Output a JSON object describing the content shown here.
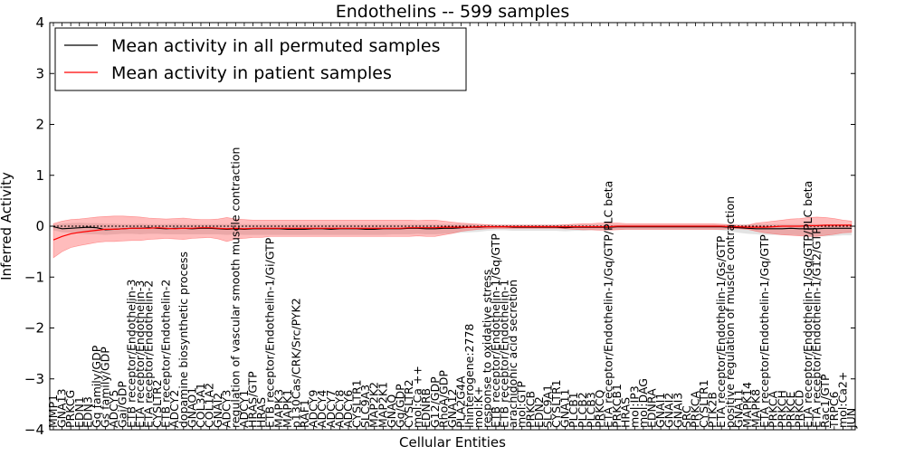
{
  "chart_data": {
    "type": "line",
    "title": "Endothelins -- 599 samples",
    "xlabel": "Cellular Entities",
    "ylabel": "Inferred Activity",
    "ylim": [
      -4,
      4
    ],
    "yticks": [
      -4,
      -3,
      -2,
      -1,
      0,
      1,
      2,
      3,
      4
    ],
    "ytick_labels": [
      "−4",
      "−3",
      "−2",
      "−1",
      "0",
      "1",
      "2",
      "3",
      "4"
    ],
    "grid": false,
    "legend_position": "top-left",
    "categories": [
      "MMP1",
      "GNA13",
      "PRKCG",
      "EDN1",
      "EDN3",
      "Gq family/GDP",
      "Gs family/GDP",
      "ADCY5",
      "Gai/GDP",
      "ETB receptor/Endothelin-3",
      "ETA receptor/Endothelin-3",
      "ETA receptor/Endothelin-2",
      "CYSLTR2",
      "ETB receptor/Endothelin-2",
      "ADCY2",
      "dopamine biosynthetic process",
      "GNAO1",
      "COL3A1",
      "COL1A2",
      "GNAI2",
      "ADCY3",
      "regulation of vascular smooth muscle contraction",
      "ADCY1",
      "HRAS/GTP",
      "HRAS",
      "ETB receptor/Endothelin-1/Gi/GTP",
      "MAPK3",
      "MAPK1",
      "p130Cas/CRK/Src/PYK2",
      "RAF1",
      "ADCY9",
      "ADCY4",
      "ADCY7",
      "ADCY8",
      "ADCY6",
      "CYSLTR1",
      "SLC9A3",
      "MAP2K2",
      "MAP2K1",
      "GNAQ",
      "Gq/GDP",
      "CYSLTR2",
      "mol:Ca ++",
      "EDNRB",
      "G12/GDP",
      "RhoA/GDP",
      "GNA12",
      "PLA2G4A",
      "Ihinterogene:2778",
      "mol:K+",
      "response to oxidative stress",
      "ETB receptor/Endothelin-1/Gq/GTP",
      "ETB receptor/Endothelin-1",
      "arachidonic acid secretion",
      "mol:GTP",
      "PRKCB",
      "EDN2",
      "SLC9A1",
      "CYSLTR1",
      "GNA11",
      "PLCB1",
      "PLCB2",
      "PLCB3",
      "PRKCQ",
      "ETA receptor/Endothelin-1/Gq/GTP/PLC beta",
      "PRKCB1",
      "HRAS",
      "mol:IP3",
      "mol:DAG",
      "EDNRA",
      "GNAI1",
      "GNAI2",
      "GNAI3",
      "SRC",
      "PRKCA",
      "CYSLTR1",
      "PTK2B",
      "ETA receptor/Endothelin-1/Gs/GTP",
      "positive regulation of muscle contraction",
      "GNA11",
      "MAPK14",
      "MAPK8",
      "ETA receptor/Endothelin-1/Gq/GTP",
      "PRKCA",
      "PRKCH",
      "PRKCE",
      "PRKCD",
      "ETA receptor/Endothelin-1/Gq/GTP/PLC beta",
      "ETA receptor/Endothelin-1/G12/GTP",
      "Rac1/GTP",
      "TRPC6",
      "mol:Ca2+",
      "JUN"
    ],
    "series": [
      {
        "name": "Mean activity in all permuted samples",
        "color": "#000000",
        "values": [
          -0.01,
          -0.05,
          -0.04,
          -0.03,
          -0.02,
          -0.03,
          -0.07,
          -0.06,
          -0.05,
          -0.04,
          -0.04,
          -0.03,
          -0.04,
          -0.05,
          -0.04,
          -0.04,
          -0.05,
          -0.04,
          -0.04,
          -0.05,
          -0.06,
          -0.05,
          -0.06,
          -0.05,
          -0.05,
          -0.05,
          -0.05,
          -0.06,
          -0.06,
          -0.06,
          -0.05,
          -0.05,
          -0.06,
          -0.05,
          -0.05,
          -0.05,
          -0.06,
          -0.06,
          -0.05,
          -0.05,
          -0.05,
          -0.04,
          -0.04,
          -0.05,
          -0.05,
          -0.04,
          -0.04,
          -0.03,
          -0.02,
          -0.02,
          -0.01,
          -0.01,
          -0.01,
          -0.02,
          -0.02,
          -0.02,
          -0.02,
          -0.02,
          -0.02,
          -0.03,
          -0.02,
          -0.02,
          -0.02,
          -0.02,
          -0.02,
          -0.01,
          -0.01,
          -0.01,
          -0.01,
          -0.01,
          -0.01,
          -0.01,
          -0.01,
          -0.01,
          -0.01,
          -0.01,
          -0.01,
          -0.01,
          -0.02,
          -0.03,
          -0.04,
          -0.05,
          -0.05,
          -0.05,
          -0.05,
          -0.04,
          -0.05,
          -0.05,
          -0.05,
          -0.04,
          -0.04,
          -0.04,
          -0.04
        ],
        "band_upper": [
          0.03,
          0.05,
          0.06,
          0.07,
          0.06,
          0.06,
          0.05,
          0.05,
          0.04,
          0.04,
          0.05,
          0.04,
          0.04,
          0.04,
          0.05,
          0.04,
          0.04,
          0.04,
          0.04,
          0.04,
          0.04,
          0.04,
          0.04,
          0.04,
          0.04,
          0.04,
          0.04,
          0.04,
          0.04,
          0.04,
          0.04,
          0.04,
          0.04,
          0.04,
          0.04,
          0.04,
          0.04,
          0.04,
          0.04,
          0.04,
          0.04,
          0.04,
          0.04,
          0.04,
          0.04,
          0.04,
          0.04,
          0.04,
          0.04,
          0.03,
          0.03,
          0.03,
          0.03,
          0.03,
          0.03,
          0.03,
          0.03,
          0.03,
          0.03,
          0.03,
          0.03,
          0.03,
          0.03,
          0.03,
          0.03,
          0.03,
          0.03,
          0.03,
          0.03,
          0.03,
          0.03,
          0.03,
          0.03,
          0.03,
          0.03,
          0.03,
          0.03,
          0.03,
          0.03,
          0.03,
          0.04,
          0.04,
          0.04,
          0.04,
          0.04,
          0.04,
          0.04,
          0.04,
          0.04,
          0.04,
          0.04,
          0.04,
          0.04
        ],
        "band_lower": [
          -0.08,
          -0.12,
          -0.13,
          -0.15,
          -0.16,
          -0.16,
          -0.17,
          -0.16,
          -0.15,
          -0.15,
          -0.16,
          -0.15,
          -0.15,
          -0.16,
          -0.16,
          -0.16,
          -0.16,
          -0.16,
          -0.16,
          -0.16,
          -0.17,
          -0.16,
          -0.17,
          -0.17,
          -0.17,
          -0.17,
          -0.17,
          -0.17,
          -0.17,
          -0.17,
          -0.17,
          -0.17,
          -0.17,
          -0.17,
          -0.17,
          -0.17,
          -0.17,
          -0.17,
          -0.17,
          -0.16,
          -0.16,
          -0.16,
          -0.15,
          -0.16,
          -0.16,
          -0.15,
          -0.14,
          -0.13,
          -0.12,
          -0.11,
          -0.09,
          -0.08,
          -0.08,
          -0.09,
          -0.09,
          -0.09,
          -0.09,
          -0.09,
          -0.09,
          -0.1,
          -0.09,
          -0.09,
          -0.08,
          -0.08,
          -0.07,
          -0.07,
          -0.07,
          -0.07,
          -0.07,
          -0.07,
          -0.07,
          -0.07,
          -0.07,
          -0.07,
          -0.07,
          -0.07,
          -0.07,
          -0.08,
          -0.1,
          -0.13,
          -0.15,
          -0.16,
          -0.17,
          -0.17,
          -0.17,
          -0.17,
          -0.18,
          -0.19,
          -0.2,
          -0.2,
          -0.19,
          -0.18,
          -0.18
        ]
      },
      {
        "name": "Mean activity in patient samples",
        "color": "#ff0000",
        "values": [
          -0.27,
          -0.2,
          -0.15,
          -0.12,
          -0.1,
          -0.08,
          -0.06,
          -0.06,
          -0.05,
          -0.04,
          -0.04,
          -0.04,
          -0.03,
          -0.04,
          -0.05,
          -0.04,
          -0.04,
          -0.03,
          -0.03,
          -0.04,
          -0.05,
          -0.04,
          -0.05,
          -0.04,
          -0.04,
          -0.04,
          -0.04,
          -0.04,
          -0.04,
          -0.04,
          -0.04,
          -0.04,
          -0.04,
          -0.04,
          -0.04,
          -0.04,
          -0.04,
          -0.04,
          -0.04,
          -0.04,
          -0.04,
          -0.03,
          -0.03,
          -0.03,
          -0.03,
          -0.02,
          -0.02,
          -0.02,
          -0.02,
          -0.01,
          -0.01,
          -0.01,
          -0.01,
          -0.01,
          -0.01,
          -0.01,
          -0.01,
          -0.01,
          -0.01,
          -0.01,
          -0.01,
          -0.01,
          -0.01,
          -0.01,
          -0.01,
          0.0,
          0.0,
          0.0,
          0.0,
          0.0,
          0.0,
          0.0,
          0.0,
          0.0,
          0.0,
          0.0,
          0.0,
          0.0,
          -0.01,
          -0.01,
          -0.02,
          -0.02,
          -0.02,
          -0.01,
          0.0,
          0.0,
          0.0,
          0.01,
          0.01,
          0.02,
          0.02,
          0.02,
          0.02
        ],
        "band_upper": [
          0.05,
          0.1,
          0.13,
          0.14,
          0.16,
          0.18,
          0.19,
          0.2,
          0.2,
          0.19,
          0.18,
          0.16,
          0.15,
          0.14,
          0.15,
          0.16,
          0.14,
          0.13,
          0.13,
          0.14,
          0.17,
          0.14,
          0.13,
          0.12,
          0.12,
          0.12,
          0.12,
          0.12,
          0.12,
          0.12,
          0.12,
          0.12,
          0.12,
          0.12,
          0.12,
          0.12,
          0.12,
          0.12,
          0.12,
          0.12,
          0.12,
          0.12,
          0.11,
          0.12,
          0.12,
          0.1,
          0.08,
          0.06,
          0.05,
          0.04,
          0.03,
          0.02,
          0.02,
          0.02,
          0.02,
          0.02,
          0.02,
          0.02,
          0.02,
          0.03,
          0.04,
          0.05,
          0.05,
          0.06,
          0.06,
          0.06,
          0.05,
          0.05,
          0.05,
          0.05,
          0.05,
          0.05,
          0.05,
          0.05,
          0.05,
          0.05,
          0.05,
          0.04,
          0.03,
          0.02,
          0.02,
          0.06,
          0.08,
          0.1,
          0.12,
          0.14,
          0.15,
          0.17,
          0.18,
          0.17,
          0.15,
          0.12,
          0.1
        ],
        "band_lower": [
          -0.62,
          -0.5,
          -0.42,
          -0.38,
          -0.35,
          -0.32,
          -0.3,
          -0.3,
          -0.29,
          -0.28,
          -0.28,
          -0.26,
          -0.25,
          -0.24,
          -0.25,
          -0.26,
          -0.24,
          -0.23,
          -0.22,
          -0.25,
          -0.3,
          -0.25,
          -0.24,
          -0.22,
          -0.22,
          -0.2,
          -0.2,
          -0.2,
          -0.2,
          -0.2,
          -0.2,
          -0.2,
          -0.2,
          -0.2,
          -0.2,
          -0.2,
          -0.2,
          -0.2,
          -0.2,
          -0.2,
          -0.2,
          -0.2,
          -0.19,
          -0.2,
          -0.2,
          -0.17,
          -0.14,
          -0.1,
          -0.08,
          -0.06,
          -0.05,
          -0.04,
          -0.04,
          -0.04,
          -0.04,
          -0.04,
          -0.04,
          -0.04,
          -0.04,
          -0.05,
          -0.06,
          -0.07,
          -0.07,
          -0.08,
          -0.08,
          -0.07,
          -0.06,
          -0.06,
          -0.06,
          -0.06,
          -0.06,
          -0.06,
          -0.06,
          -0.06,
          -0.06,
          -0.06,
          -0.06,
          -0.06,
          -0.05,
          -0.05,
          -0.06,
          -0.1,
          -0.13,
          -0.15,
          -0.17,
          -0.18,
          -0.19,
          -0.2,
          -0.2,
          -0.18,
          -0.16,
          -0.13,
          -0.12
        ]
      }
    ]
  }
}
